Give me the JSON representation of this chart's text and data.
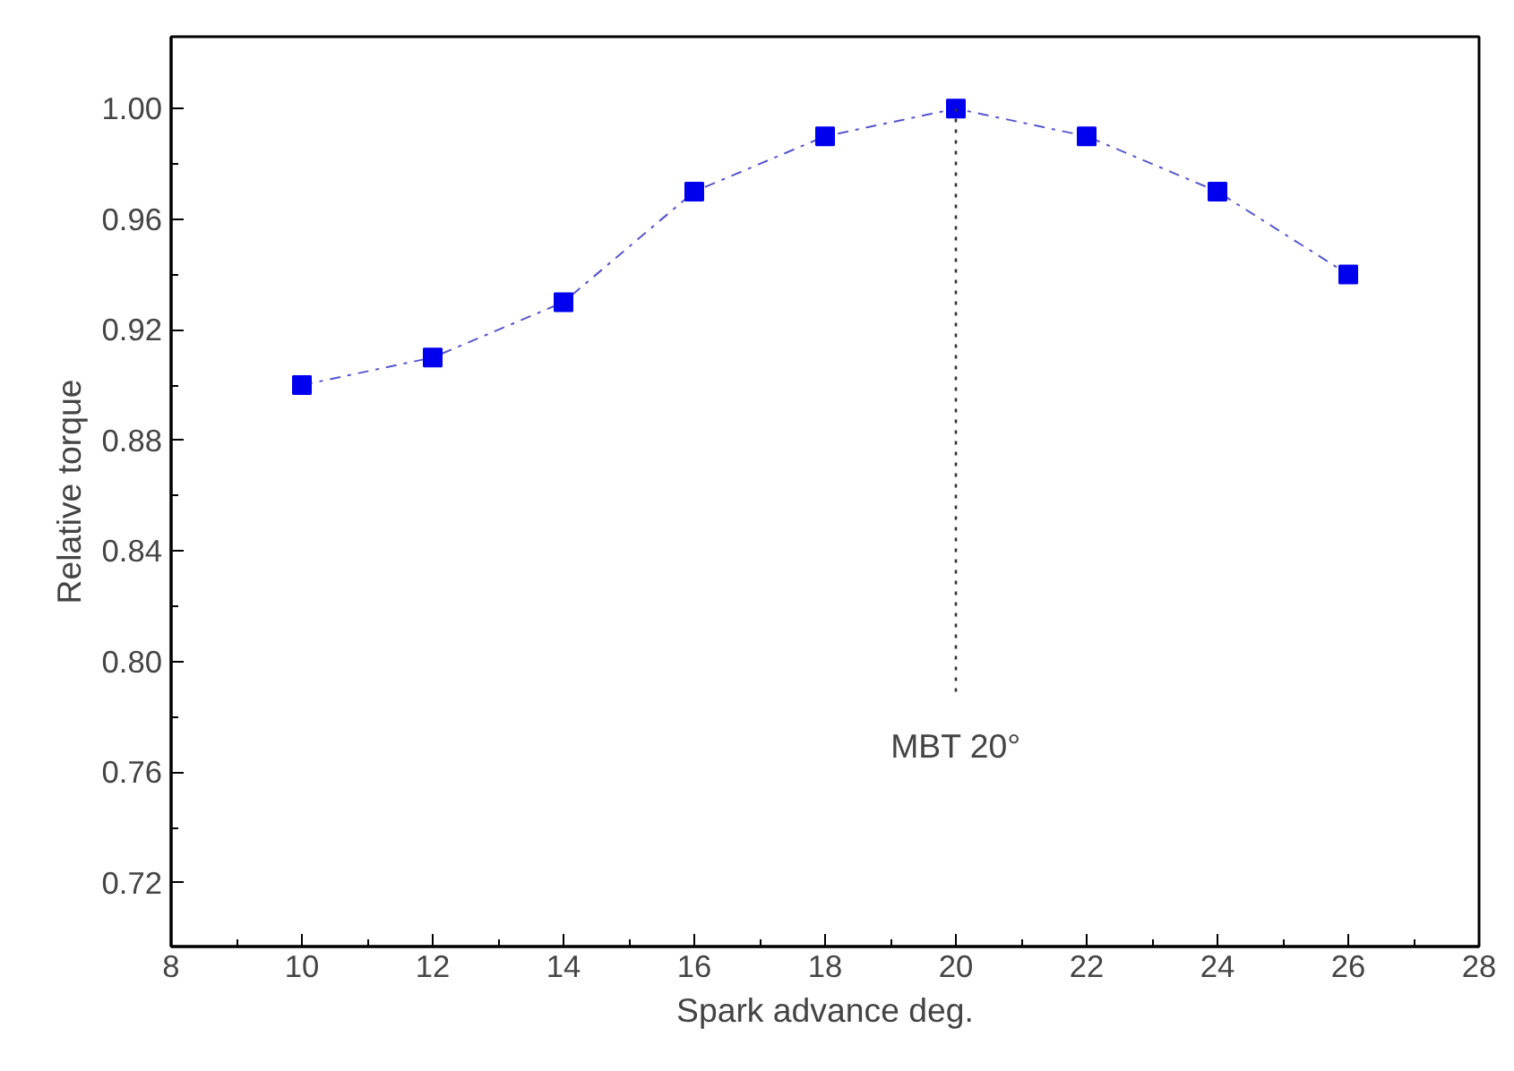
{
  "chart_data": {
    "type": "line",
    "xlabel": "Spark advance deg.",
    "ylabel": "Relative torque",
    "x": [
      10,
      12,
      14,
      16,
      18,
      20,
      22,
      24,
      26
    ],
    "series": [
      {
        "color": "#0000ee",
        "values": [
          0.9,
          0.91,
          0.93,
          0.97,
          0.99,
          1.0,
          0.99,
          0.97,
          0.94
        ]
      }
    ],
    "xlim": [
      8,
      28
    ],
    "xticks": [
      8,
      10,
      12,
      14,
      16,
      18,
      20,
      22,
      24,
      26,
      28
    ],
    "ylim": [
      0.697,
      1.026
    ],
    "yticks": [
      0.72,
      0.76,
      {
        "value": 0.8,
        "label": "0.80"
      },
      0.84,
      0.88,
      0.92,
      0.96,
      {
        "value": 1,
        "label": "1.00"
      }
    ],
    "ref_lines": [
      {
        "axis": "x",
        "value": 20,
        "label": "MBT 20°",
        "line_style": "dotted",
        "color": "#333333"
      }
    ],
    "marker": "square",
    "line_style": "dashed",
    "grid": false
  }
}
